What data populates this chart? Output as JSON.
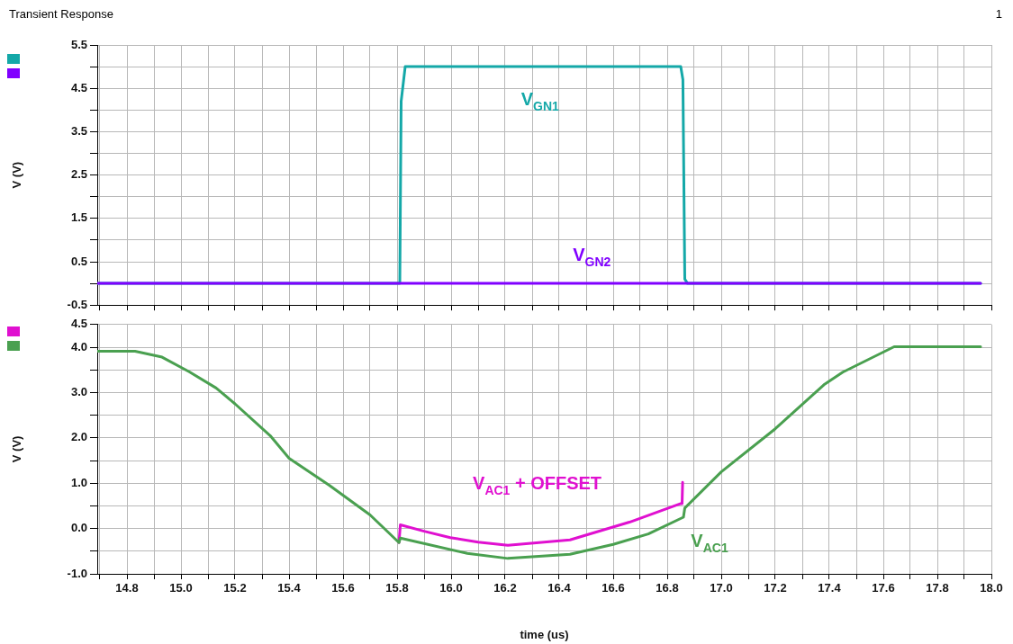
{
  "chart_data": [
    {
      "type": "line",
      "title": "Transient Response",
      "annotations": [
        "1"
      ],
      "ylabel": "V (V)",
      "xlim": [
        14.69,
        18.0
      ],
      "ylim": [
        -0.5,
        5.5
      ],
      "xticks": [
        {
          "value": 14.7,
          "label": null
        },
        {
          "value": 14.8,
          "label": null
        },
        {
          "value": 14.9,
          "label": null
        },
        {
          "value": 15.0,
          "label": null
        },
        {
          "value": 15.1,
          "label": null
        },
        {
          "value": 15.2,
          "label": null
        },
        {
          "value": 15.3,
          "label": null
        },
        {
          "value": 15.4,
          "label": null
        },
        {
          "value": 15.5,
          "label": null
        },
        {
          "value": 15.6,
          "label": null
        },
        {
          "value": 15.7,
          "label": null
        },
        {
          "value": 15.8,
          "label": null
        },
        {
          "value": 15.9,
          "label": null
        },
        {
          "value": 16.0,
          "label": null
        },
        {
          "value": 16.1,
          "label": null
        },
        {
          "value": 16.2,
          "label": null
        },
        {
          "value": 16.3,
          "label": null
        },
        {
          "value": 16.4,
          "label": null
        },
        {
          "value": 16.5,
          "label": null
        },
        {
          "value": 16.6,
          "label": null
        },
        {
          "value": 16.7,
          "label": null
        },
        {
          "value": 16.8,
          "label": null
        },
        {
          "value": 16.9,
          "label": null
        },
        {
          "value": 17.0,
          "label": null
        },
        {
          "value": 17.1,
          "label": null
        },
        {
          "value": 17.2,
          "label": null
        },
        {
          "value": 17.3,
          "label": null
        },
        {
          "value": 17.4,
          "label": null
        },
        {
          "value": 17.5,
          "label": null
        },
        {
          "value": 17.6,
          "label": null
        },
        {
          "value": 17.7,
          "label": null
        },
        {
          "value": 17.8,
          "label": null
        },
        {
          "value": 17.9,
          "label": null
        },
        {
          "value": 18.0,
          "label": null
        }
      ],
      "yticks": [
        -0.5,
        {
          "value": 0,
          "label": null
        },
        0.5,
        {
          "value": 1,
          "label": null
        },
        1.5,
        {
          "value": 2,
          "label": null
        },
        2.5,
        {
          "value": 3,
          "label": null
        },
        3.5,
        {
          "value": 4,
          "label": null
        },
        4.5,
        {
          "value": 5,
          "label": null
        },
        5.5
      ],
      "tick_labels": "y",
      "grid": true,
      "marker": "none",
      "series": [
        {
          "name": "V$_{GN1}$",
          "color": "#14a8a8",
          "x": [
            14.69,
            15.81,
            15.815,
            15.83,
            16.85,
            16.858,
            16.865,
            16.875,
            17.96
          ],
          "values": [
            0,
            0,
            4.2,
            5.0,
            5.0,
            4.7,
            0.1,
            0,
            0
          ]
        },
        {
          "name": "V$_{GN2}$",
          "color": "#8000ff",
          "x": [
            14.69,
            17.96
          ],
          "values": [
            0,
            0
          ]
        }
      ]
    },
    {
      "type": "line",
      "xlabel": "time (us)",
      "ylabel": "V (V)",
      "xlim": [
        14.69,
        18.0
      ],
      "ylim": [
        -1.0,
        4.5
      ],
      "xticks": [
        {
          "value": 14.7,
          "label": null
        },
        {
          "value": 14.8,
          "label": "14.8"
        },
        {
          "value": 14.9,
          "label": null
        },
        {
          "value": 15.0,
          "label": "15.0"
        },
        {
          "value": 15.1,
          "label": null
        },
        {
          "value": 15.2,
          "label": "15.2"
        },
        {
          "value": 15.3,
          "label": null
        },
        {
          "value": 15.4,
          "label": "15.4"
        },
        {
          "value": 15.5,
          "label": null
        },
        {
          "value": 15.6,
          "label": "15.6"
        },
        {
          "value": 15.7,
          "label": null
        },
        {
          "value": 15.8,
          "label": "15.8"
        },
        {
          "value": 15.9,
          "label": null
        },
        {
          "value": 16.0,
          "label": "16.0"
        },
        {
          "value": 16.1,
          "label": null
        },
        {
          "value": 16.2,
          "label": "16.2"
        },
        {
          "value": 16.3,
          "label": null
        },
        {
          "value": 16.4,
          "label": "16.4"
        },
        {
          "value": 16.5,
          "label": null
        },
        {
          "value": 16.6,
          "label": "16.6"
        },
        {
          "value": 16.7,
          "label": null
        },
        {
          "value": 16.8,
          "label": "16.8"
        },
        {
          "value": 16.9,
          "label": null
        },
        {
          "value": 17.0,
          "label": "17.0"
        },
        {
          "value": 17.1,
          "label": null
        },
        {
          "value": 17.2,
          "label": "17.2"
        },
        {
          "value": 17.3,
          "label": null
        },
        {
          "value": 17.4,
          "label": "17.4"
        },
        {
          "value": 17.5,
          "label": null
        },
        {
          "value": 17.6,
          "label": "17.6"
        },
        {
          "value": 17.7,
          "label": null
        },
        {
          "value": 17.8,
          "label": "17.8"
        },
        {
          "value": 17.9,
          "label": null
        },
        {
          "value": 18.0,
          "label": "18.0"
        }
      ],
      "yticks": [
        {
          "value": -1.0,
          "label": "-1.0"
        },
        {
          "value": -0.5,
          "label": null
        },
        {
          "value": 0,
          "label": "0.0"
        },
        {
          "value": 0.5,
          "label": null
        },
        {
          "value": 1.0,
          "label": "1.0"
        },
        {
          "value": 1.5,
          "label": null
        },
        {
          "value": 2.0,
          "label": "2.0"
        },
        {
          "value": 2.5,
          "label": null
        },
        {
          "value": 3.0,
          "label": "3.0"
        },
        {
          "value": 3.5,
          "label": null
        },
        {
          "value": 4.0,
          "label": "4.0"
        },
        4.5
      ],
      "grid": true,
      "marker": "none",
      "series": [
        {
          "name": "V$_{AC1}$ + OFFSET",
          "color": "#e010d0",
          "x": [
            15.807,
            15.812,
            15.9,
            15.997,
            16.1,
            16.21,
            16.44,
            16.66,
            16.85,
            16.855,
            16.857
          ],
          "values": [
            -0.31,
            0.08,
            -0.06,
            -0.2,
            -0.3,
            -0.37,
            -0.25,
            0.14,
            0.55,
            0.55,
            1.02
          ]
        },
        {
          "name": "V$_{AC1}$",
          "color": "#4aa050",
          "x": [
            14.69,
            14.83,
            14.93,
            15.03,
            15.13,
            15.2,
            15.33,
            15.4,
            15.55,
            15.7,
            15.807,
            15.812,
            16.06,
            16.21,
            16.44,
            16.6,
            16.73,
            16.86,
            16.865,
            17.0,
            17.2,
            17.38,
            17.45,
            17.64,
            17.96
          ],
          "values": [
            3.91,
            3.91,
            3.78,
            3.46,
            3.1,
            2.75,
            2.05,
            1.55,
            0.95,
            0.3,
            -0.31,
            -0.21,
            -0.55,
            -0.66,
            -0.57,
            -0.35,
            -0.12,
            0.25,
            0.45,
            1.25,
            2.2,
            3.17,
            3.45,
            4.01,
            4.01
          ]
        }
      ]
    }
  ]
}
